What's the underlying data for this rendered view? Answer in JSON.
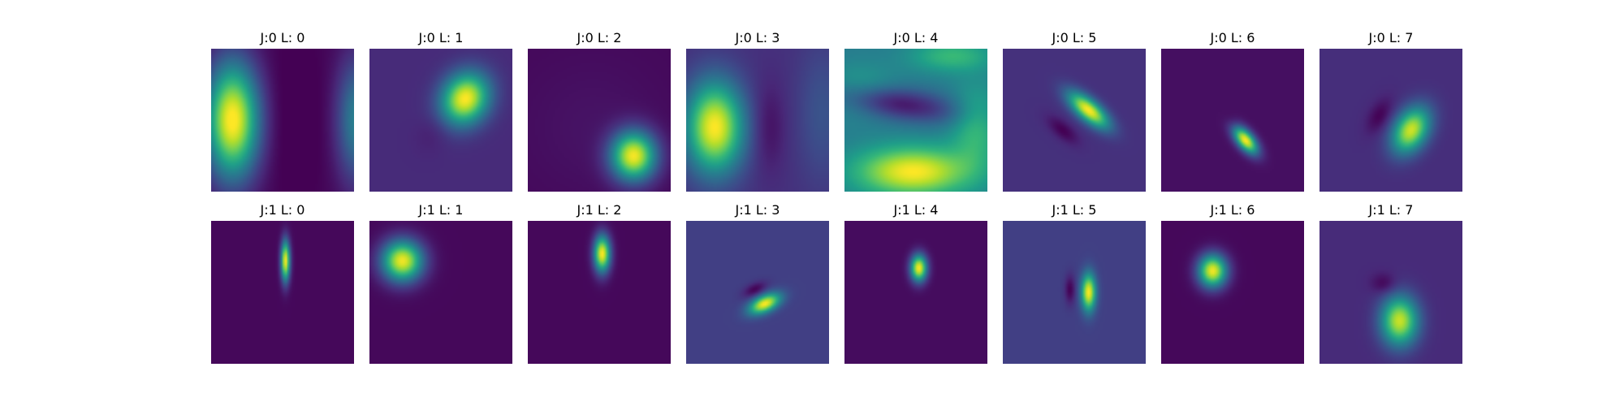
{
  "chart_data": {
    "type": "heatmap",
    "colormap": "viridis",
    "grid": false,
    "axes_visible": false,
    "colormap_stops": [
      "#440154",
      "#482878",
      "#3e4989",
      "#31688e",
      "#26828e",
      "#1f9e89",
      "#35b779",
      "#6ece58",
      "#b5de2b",
      "#fde725"
    ],
    "rows": [
      {
        "panels": [
          {
            "title": "J:0 L: 0",
            "bg": 0.02,
            "blobs": [
              {
                "x": 0.15,
                "y": 0.5,
                "sx": 0.13,
                "sy": 0.28,
                "rot": 0,
                "amp": 1.0
              },
              {
                "x": 1.02,
                "y": 0.5,
                "sx": 0.1,
                "sy": 0.3,
                "rot": 0,
                "amp": 0.42
              },
              {
                "x": 0.58,
                "y": 0.5,
                "sx": 0.16,
                "sy": 0.45,
                "rot": 0,
                "amp": -0.05
              }
            ]
          },
          {
            "title": "J:0 L: 1",
            "bg": 0.12,
            "blobs": [
              {
                "x": 0.67,
                "y": 0.35,
                "sx": 0.11,
                "sy": 0.13,
                "rot": 30,
                "amp": 0.88
              },
              {
                "x": 0.45,
                "y": 0.58,
                "sx": 0.08,
                "sy": 0.1,
                "rot": 30,
                "amp": -0.04
              }
            ]
          },
          {
            "title": "J:0 L: 2",
            "bg": 0.02,
            "blobs": [
              {
                "x": 0.74,
                "y": 0.75,
                "sx": 0.11,
                "sy": 0.12,
                "rot": 0,
                "amp": 0.95
              },
              {
                "x": 0.45,
                "y": 0.55,
                "sx": 0.35,
                "sy": 0.35,
                "rot": 0,
                "amp": 0.03
              }
            ]
          },
          {
            "title": "J:0 L: 3",
            "bg": 0.14,
            "blobs": [
              {
                "x": 0.2,
                "y": 0.55,
                "sx": 0.14,
                "sy": 0.22,
                "rot": 0,
                "amp": 0.86
              },
              {
                "x": 0.58,
                "y": 0.55,
                "sx": 0.08,
                "sy": 0.22,
                "rot": 0,
                "amp": -0.1
              },
              {
                "x": 0.95,
                "y": 0.45,
                "sx": 0.12,
                "sy": 0.35,
                "rot": 0,
                "amp": 0.12
              }
            ]
          },
          {
            "title": "J:0 L: 4",
            "bg": 0.42,
            "blobs": [
              {
                "x": 0.48,
                "y": 0.86,
                "sx": 0.28,
                "sy": 0.12,
                "rot": 0,
                "amp": 0.58
              },
              {
                "x": 0.35,
                "y": 0.38,
                "sx": 0.32,
                "sy": 0.08,
                "rot": 8,
                "amp": -0.38
              },
              {
                "x": 0.1,
                "y": 0.3,
                "sx": 0.18,
                "sy": 0.12,
                "rot": 0,
                "amp": 0.18
              },
              {
                "x": 0.92,
                "y": 0.55,
                "sx": 0.12,
                "sy": 0.2,
                "rot": 0,
                "amp": 0.25
              },
              {
                "x": 0.75,
                "y": 0.05,
                "sx": 0.2,
                "sy": 0.08,
                "rot": 0,
                "amp": 0.25
              }
            ]
          },
          {
            "title": "J:0 L: 5",
            "bg": 0.14,
            "blobs": [
              {
                "x": 0.6,
                "y": 0.43,
                "sx": 0.05,
                "sy": 0.12,
                "rot": -50,
                "amp": 0.86
              },
              {
                "x": 0.42,
                "y": 0.57,
                "sx": 0.04,
                "sy": 0.09,
                "rot": -50,
                "amp": -0.14
              }
            ]
          },
          {
            "title": "J:0 L: 6",
            "bg": 0.04,
            "blobs": [
              {
                "x": 0.59,
                "y": 0.64,
                "sx": 0.04,
                "sy": 0.08,
                "rot": -40,
                "amp": 0.96
              },
              {
                "x": 0.51,
                "y": 0.52,
                "sx": 0.03,
                "sy": 0.05,
                "rot": -40,
                "amp": -0.04
              }
            ]
          },
          {
            "title": "J:0 L: 7",
            "bg": 0.13,
            "blobs": [
              {
                "x": 0.64,
                "y": 0.57,
                "sx": 0.08,
                "sy": 0.12,
                "rot": 30,
                "amp": 0.8
              },
              {
                "x": 0.42,
                "y": 0.47,
                "sx": 0.05,
                "sy": 0.09,
                "rot": 30,
                "amp": -0.13
              }
            ]
          }
        ]
      },
      {
        "panels": [
          {
            "title": "J:1 L: 0",
            "bg": 0.02,
            "blobs": [
              {
                "x": 0.52,
                "y": 0.28,
                "sx": 0.022,
                "sy": 0.1,
                "rot": 0,
                "amp": 0.98
              }
            ]
          },
          {
            "title": "J:1 L: 1",
            "bg": 0.02,
            "blobs": [
              {
                "x": 0.23,
                "y": 0.28,
                "sx": 0.1,
                "sy": 0.1,
                "rot": 0,
                "amp": 0.96
              }
            ]
          },
          {
            "title": "J:1 L: 2",
            "bg": 0.02,
            "blobs": [
              {
                "x": 0.52,
                "y": 0.23,
                "sx": 0.04,
                "sy": 0.09,
                "rot": 0,
                "amp": 0.98
              }
            ]
          },
          {
            "title": "J:1 L: 3",
            "bg": 0.19,
            "blobs": [
              {
                "x": 0.55,
                "y": 0.58,
                "sx": 0.08,
                "sy": 0.04,
                "rot": -25,
                "amp": 0.81
              },
              {
                "x": 0.48,
                "y": 0.48,
                "sx": 0.06,
                "sy": 0.03,
                "rot": -25,
                "amp": -0.19
              }
            ]
          },
          {
            "title": "J:1 L: 4",
            "bg": 0.03,
            "blobs": [
              {
                "x": 0.52,
                "y": 0.33,
                "sx": 0.04,
                "sy": 0.065,
                "rot": 0,
                "amp": 0.97
              }
            ]
          },
          {
            "title": "J:1 L: 5",
            "bg": 0.19,
            "blobs": [
              {
                "x": 0.6,
                "y": 0.5,
                "sx": 0.035,
                "sy": 0.09,
                "rot": 0,
                "amp": 0.81
              },
              {
                "x": 0.47,
                "y": 0.48,
                "sx": 0.025,
                "sy": 0.07,
                "rot": 0,
                "amp": -0.19
              }
            ]
          },
          {
            "title": "J:1 L: 6",
            "bg": 0.02,
            "blobs": [
              {
                "x": 0.36,
                "y": 0.35,
                "sx": 0.07,
                "sy": 0.08,
                "rot": 0,
                "amp": 0.96
              }
            ]
          },
          {
            "title": "J:1 L: 7",
            "bg": 0.12,
            "blobs": [
              {
                "x": 0.56,
                "y": 0.7,
                "sx": 0.09,
                "sy": 0.12,
                "rot": 0,
                "amp": 0.8
              },
              {
                "x": 0.45,
                "y": 0.44,
                "sx": 0.06,
                "sy": 0.05,
                "rot": 0,
                "amp": -0.12
              }
            ]
          }
        ]
      }
    ]
  }
}
